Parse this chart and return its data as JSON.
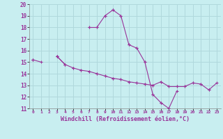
{
  "xlabel": "Windchill (Refroidissement éolien,°C)",
  "background_color": "#c8eef0",
  "grid_color": "#b0d8dc",
  "line_color": "#993399",
  "x": [
    0,
    1,
    2,
    3,
    4,
    5,
    6,
    7,
    8,
    9,
    10,
    11,
    12,
    13,
    14,
    15,
    16,
    17,
    18,
    19,
    20,
    21,
    22,
    23
  ],
  "y1": [
    15.2,
    15.0,
    null,
    15.5,
    14.8,
    null,
    null,
    18.0,
    18.0,
    19.0,
    19.5,
    19.0,
    16.5,
    16.2,
    15.0,
    12.2,
    11.5,
    11.0,
    12.5,
    null,
    null,
    null,
    null,
    null
  ],
  "y2": [
    15.2,
    null,
    null,
    15.5,
    14.8,
    14.5,
    14.3,
    14.2,
    14.0,
    13.8,
    13.6,
    13.5,
    13.3,
    13.2,
    13.1,
    13.0,
    13.3,
    12.9,
    12.9,
    12.9,
    13.2,
    13.1,
    12.6,
    13.2
  ],
  "xlim": [
    -0.5,
    23.5
  ],
  "ylim": [
    11,
    20
  ],
  "yticks": [
    11,
    12,
    13,
    14,
    15,
    16,
    17,
    18,
    19,
    20
  ],
  "xticks": [
    0,
    1,
    2,
    3,
    4,
    5,
    6,
    7,
    8,
    9,
    10,
    11,
    12,
    13,
    14,
    15,
    16,
    17,
    18,
    19,
    20,
    21,
    22,
    23
  ]
}
